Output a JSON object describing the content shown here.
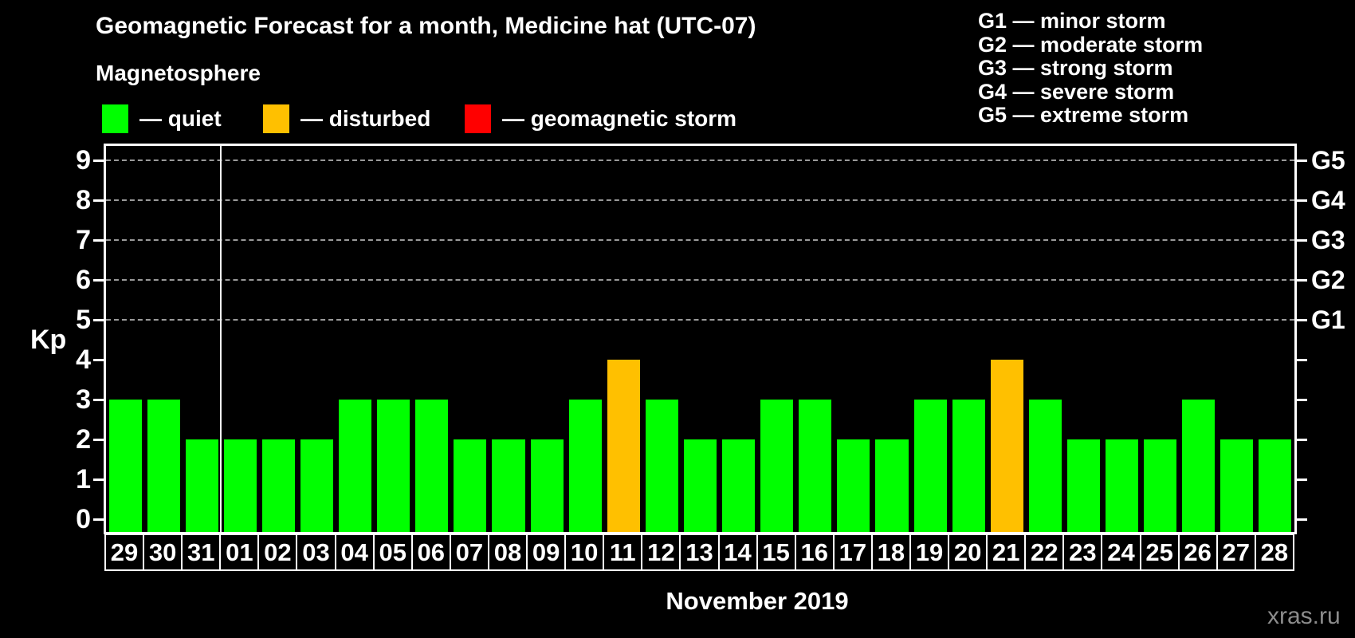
{
  "title": "Geomagnetic Forecast for a month, Medicine hat (UTC-07)",
  "subtitle": "Magnetosphere",
  "legend": {
    "items": [
      {
        "name": "quiet",
        "label": "— quiet",
        "color": "#00ff00"
      },
      {
        "name": "disturbed",
        "label": "— disturbed",
        "color": "#ffc000"
      },
      {
        "name": "storm",
        "label": "— geomagnetic storm",
        "color": "#ff0000"
      }
    ]
  },
  "storm_scale_legend": [
    "G1 — minor storm",
    "G2 — moderate storm",
    "G3 — strong storm",
    "G4 — severe storm",
    "G5 — extreme storm"
  ],
  "watermark": "xras.ru",
  "chart_data": {
    "type": "bar",
    "title": "Geomagnetic Forecast for a month, Medicine hat (UTC-07)",
    "xlabel": "November 2019",
    "ylabel": "Kp",
    "ylim": [
      -0.32,
      9.36
    ],
    "yticks": [
      0,
      1,
      2,
      3,
      4,
      5,
      6,
      7,
      8,
      9
    ],
    "gridlines_at": [
      5,
      6,
      7,
      8,
      9
    ],
    "grid": "dashed-horizontal",
    "legend_position": "top",
    "right_axis_labels": [
      {
        "label": "G1",
        "kp": 5
      },
      {
        "label": "G2",
        "kp": 6
      },
      {
        "label": "G3",
        "kp": 7
      },
      {
        "label": "G4",
        "kp": 8
      },
      {
        "label": "G5",
        "kp": 9
      }
    ],
    "month_separator_after_index": 2,
    "categories": [
      "29",
      "30",
      "31",
      "01",
      "02",
      "03",
      "04",
      "05",
      "06",
      "07",
      "08",
      "09",
      "10",
      "11",
      "12",
      "13",
      "14",
      "15",
      "16",
      "17",
      "18",
      "19",
      "20",
      "21",
      "22",
      "23",
      "24",
      "25",
      "26",
      "27",
      "28"
    ],
    "values": [
      3,
      3,
      2,
      2,
      2,
      2,
      3,
      3,
      3,
      2,
      2,
      2,
      3,
      4,
      3,
      2,
      2,
      3,
      3,
      2,
      2,
      3,
      3,
      4,
      3,
      2,
      2,
      2,
      3,
      2,
      2
    ],
    "colors": {
      "quiet": "#00ff00",
      "disturbed": "#ffc000",
      "storm": "#ff0000"
    },
    "days": [
      {
        "label": "29",
        "kp": 3,
        "status": "quiet"
      },
      {
        "label": "30",
        "kp": 3,
        "status": "quiet"
      },
      {
        "label": "31",
        "kp": 2,
        "status": "quiet"
      },
      {
        "label": "01",
        "kp": 2,
        "status": "quiet"
      },
      {
        "label": "02",
        "kp": 2,
        "status": "quiet"
      },
      {
        "label": "03",
        "kp": 2,
        "status": "quiet"
      },
      {
        "label": "04",
        "kp": 3,
        "status": "quiet"
      },
      {
        "label": "05",
        "kp": 3,
        "status": "quiet"
      },
      {
        "label": "06",
        "kp": 3,
        "status": "quiet"
      },
      {
        "label": "07",
        "kp": 2,
        "status": "quiet"
      },
      {
        "label": "08",
        "kp": 2,
        "status": "quiet"
      },
      {
        "label": "09",
        "kp": 2,
        "status": "quiet"
      },
      {
        "label": "10",
        "kp": 3,
        "status": "quiet"
      },
      {
        "label": "11",
        "kp": 4,
        "status": "disturbed"
      },
      {
        "label": "12",
        "kp": 3,
        "status": "quiet"
      },
      {
        "label": "13",
        "kp": 2,
        "status": "quiet"
      },
      {
        "label": "14",
        "kp": 2,
        "status": "quiet"
      },
      {
        "label": "15",
        "kp": 3,
        "status": "quiet"
      },
      {
        "label": "16",
        "kp": 3,
        "status": "quiet"
      },
      {
        "label": "17",
        "kp": 2,
        "status": "quiet"
      },
      {
        "label": "18",
        "kp": 2,
        "status": "quiet"
      },
      {
        "label": "19",
        "kp": 3,
        "status": "quiet"
      },
      {
        "label": "20",
        "kp": 3,
        "status": "quiet"
      },
      {
        "label": "21",
        "kp": 4,
        "status": "disturbed"
      },
      {
        "label": "22",
        "kp": 3,
        "status": "quiet"
      },
      {
        "label": "23",
        "kp": 2,
        "status": "quiet"
      },
      {
        "label": "24",
        "kp": 2,
        "status": "quiet"
      },
      {
        "label": "25",
        "kp": 2,
        "status": "quiet"
      },
      {
        "label": "26",
        "kp": 3,
        "status": "quiet"
      },
      {
        "label": "27",
        "kp": 2,
        "status": "quiet"
      },
      {
        "label": "28",
        "kp": 2,
        "status": "quiet"
      }
    ]
  }
}
